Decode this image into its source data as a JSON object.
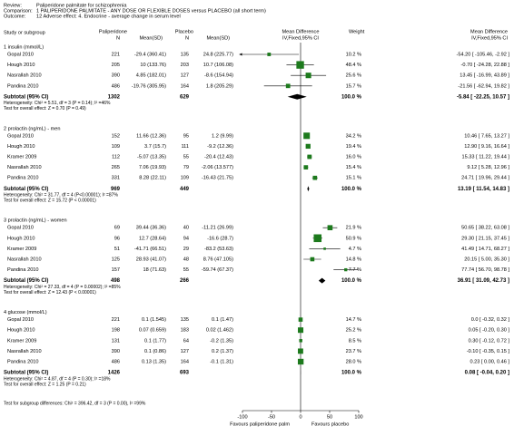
{
  "chart_data": {
    "type": "forest",
    "header": {
      "review_label": "Review:",
      "review": "Paliperidone palmitate for schizophrenia",
      "comparison_label": "Comparison:",
      "comparison": "1 PALIPERIDONE PALMITATE - ANY DOSE OR FLEXIBLE DOSES versus PLACEBO (all short term)",
      "outcome_label": "Outcome:",
      "outcome": "12 Adverse effect: 4. Endocrine - average change in serum level"
    },
    "columns": {
      "study": "Study or subgroup",
      "exp": "Paliperidone",
      "exp_n": "N",
      "exp_mean_sd": "Mean(SD)",
      "ctl": "Placebo",
      "ctl_n": "N",
      "ctl_mean_sd": "Mean(SD)",
      "plot": "Mean Difference",
      "plot_method": "IV,Fixed,95% CI",
      "weight": "Weight",
      "effect": "Mean Difference",
      "effect_method": "IV,Fixed,95% CI"
    },
    "color": "#1d7a1d",
    "groups": [
      {
        "title": "1 insulin (mmol/L)",
        "studies": [
          {
            "name": "Gopal 2010",
            "exp_n": 221,
            "exp_mean_sd": "-29.4 (360.41)",
            "ctl_n": 135,
            "ctl_mean_sd": "24.8 (225.77)",
            "weight": 10.2,
            "weight_label": "10.2 %",
            "md": -54.2,
            "ci_low": -105.46,
            "ci_high": -2.92,
            "ci_label": "-54.20 [ -105.46, -2.92 ]"
          },
          {
            "name": "Hough 2010",
            "exp_n": 205,
            "exp_mean_sd": "10 (133.76)",
            "ctl_n": 203,
            "ctl_mean_sd": "10.7 (106.08)",
            "weight": 48.4,
            "weight_label": "48.4 %",
            "md": -0.7,
            "ci_low": -24.28,
            "ci_high": 22.88,
            "ci_label": "-0.70 [ -24.28, 22.88 ]"
          },
          {
            "name": "Nasrallah 2010",
            "exp_n": 390,
            "exp_mean_sd": "4.85 (182.01)",
            "ctl_n": 127,
            "ctl_mean_sd": "-8.6 (154.94)",
            "weight": 25.6,
            "weight_label": "25.6 %",
            "md": 13.45,
            "ci_low": -16.99,
            "ci_high": 43.89,
            "ci_label": "13.45 [ -16.99, 43.89 ]"
          },
          {
            "name": "Pandina 2010",
            "exp_n": 486,
            "exp_mean_sd": "-19.76 (305.95)",
            "ctl_n": 164,
            "ctl_mean_sd": "1.8 (205.29)",
            "weight": 15.7,
            "weight_label": "15.7 %",
            "md": -21.56,
            "ci_low": -62.94,
            "ci_high": 19.82,
            "ci_label": "-21.56 [ -62.94, 19.82 ]"
          }
        ],
        "subtotal": {
          "label": "Subtotal (95% CI)",
          "exp_n": 1302,
          "ctl_n": 629,
          "weight_label": "100.0 %",
          "md": -5.84,
          "ci_low": -22.25,
          "ci_high": 10.57,
          "ci_label": "-5.84 [ -22.25, 10.57 ]"
        },
        "heterogeneity": "Heterogeneity: Chi² = 5.51, df = 3 (P = 0.14); I² =46%",
        "overall_effect": "Test for overall effect: Z = 0.70 (P = 0.49)"
      },
      {
        "title": "2 prolactin (ng/mL) - men",
        "studies": [
          {
            "name": "Gopal 2010",
            "exp_n": 152,
            "exp_mean_sd": "11.66 (12.36)",
            "ctl_n": 95,
            "ctl_mean_sd": "1.2 (9.99)",
            "weight": 34.2,
            "weight_label": "34.2 %",
            "md": 10.46,
            "ci_low": 7.65,
            "ci_high": 13.27,
            "ci_label": "10.46 [ 7.65, 13.27 ]"
          },
          {
            "name": "Hough 2010",
            "exp_n": 109,
            "exp_mean_sd": "3.7 (15.7)",
            "ctl_n": 111,
            "ctl_mean_sd": "-9.2 (12.36)",
            "weight": 19.4,
            "weight_label": "19.4 %",
            "md": 12.9,
            "ci_low": 9.16,
            "ci_high": 16.64,
            "ci_label": "12.90 [ 9.16, 16.64 ]"
          },
          {
            "name": "Kramer 2009",
            "exp_n": 112,
            "exp_mean_sd": "-5.07 (13.35)",
            "ctl_n": 55,
            "ctl_mean_sd": "-20.4 (12.43)",
            "weight": 16.0,
            "weight_label": "16.0 %",
            "md": 15.33,
            "ci_low": 11.22,
            "ci_high": 19.44,
            "ci_label": "15.33 [ 11.22, 19.44 ]"
          },
          {
            "name": "Nasrallah 2010",
            "exp_n": 265,
            "exp_mean_sd": "7.06 (19.93)",
            "ctl_n": 79,
            "ctl_mean_sd": "-2.06 (13.577)",
            "weight": 15.4,
            "weight_label": "15.4 %",
            "md": 9.12,
            "ci_low": 5.28,
            "ci_high": 12.96,
            "ci_label": "9.12 [ 5.28, 12.96 ]"
          },
          {
            "name": "Pandina 2010",
            "exp_n": 331,
            "exp_mean_sd": "8.28 (22.11)",
            "ctl_n": 109,
            "ctl_mean_sd": "-16.43 (21.75)",
            "weight": 15.1,
            "weight_label": "15.1 %",
            "md": 24.71,
            "ci_low": 19.96,
            "ci_high": 29.44,
            "ci_label": "24.71 [ 19.96, 29.44 ]"
          }
        ],
        "subtotal": {
          "label": "Subtotal (95% CI)",
          "exp_n": 969,
          "ctl_n": 449,
          "weight_label": "100.0 %",
          "md": 13.19,
          "ci_low": 11.54,
          "ci_high": 14.83,
          "ci_label": "13.19 [ 11.54, 14.83 ]"
        },
        "heterogeneity": "Heterogeneity: Chi² = 31.77, df = 4 (P<0.00001); I² =87%",
        "overall_effect": "Test for overall effect: Z = 15.72 (P < 0.00001)"
      },
      {
        "title": "3 prolactin (ng/mL) - women",
        "studies": [
          {
            "name": "Gopal 2010",
            "exp_n": 69,
            "exp_mean_sd": "39.44 (36.36)",
            "ctl_n": 40,
            "ctl_mean_sd": "-11.21 (26.99)",
            "weight": 21.9,
            "weight_label": "21.9 %",
            "md": 50.65,
            "ci_low": 38.22,
            "ci_high": 63.08,
            "ci_label": "50.65 [ 38.22, 63.08 ]"
          },
          {
            "name": "Hough 2010",
            "exp_n": 96,
            "exp_mean_sd": "12.7 (28.64)",
            "ctl_n": 94,
            "ctl_mean_sd": "-16.6 (28.7)",
            "weight": 50.9,
            "weight_label": "50.9 %",
            "md": 29.3,
            "ci_low": 21.15,
            "ci_high": 37.45,
            "ci_label": "29.30 [ 21.15, 37.45 ]"
          },
          {
            "name": "Kramer 2009",
            "exp_n": 51,
            "exp_mean_sd": "-41.71 (66.51)",
            "ctl_n": 29,
            "ctl_mean_sd": "-83.2 (53.63)",
            "weight": 4.7,
            "weight_label": "4.7 %",
            "md": 41.49,
            "ci_low": 14.71,
            "ci_high": 68.27,
            "ci_label": "41.49 [ 14.71, 68.27 ]"
          },
          {
            "name": "Nasrallah 2010",
            "exp_n": 125,
            "exp_mean_sd": "28.93 (41.07)",
            "ctl_n": 48,
            "ctl_mean_sd": "8.76 (47.105)",
            "weight": 14.8,
            "weight_label": "14.8 %",
            "md": 20.15,
            "ci_low": 5.0,
            "ci_high": 35.3,
            "ci_label": "20.15 [ 5.00, 35.30 ]"
          },
          {
            "name": "Pandina 2010",
            "exp_n": 157,
            "exp_mean_sd": "18 (71.63)",
            "ctl_n": 55,
            "ctl_mean_sd": "-59.74 (67.37)",
            "weight": 7.7,
            "weight_label": "7.7 %",
            "md": 77.74,
            "ci_low": 56.7,
            "ci_high": 98.78,
            "ci_label": "77.74 [ 56.70, 98.78 ]"
          }
        ],
        "subtotal": {
          "label": "Subtotal (95% CI)",
          "exp_n": 498,
          "ctl_n": 266,
          "weight_label": "100.0 %",
          "md": 36.91,
          "ci_low": 31.09,
          "ci_high": 42.73,
          "ci_label": "36.91 [ 31.09, 42.73 ]"
        },
        "heterogeneity": "Heterogeneity: Chi² = 27.33, df = 4 (P = 0.00002); I² =85%",
        "overall_effect": "Test for overall effect: Z = 12.43 (P < 0.00001)"
      },
      {
        "title": "4 glucose (mmol/L)",
        "studies": [
          {
            "name": "Gopal 2010",
            "exp_n": 221,
            "exp_mean_sd": "0.1 (1.545)",
            "ctl_n": 135,
            "ctl_mean_sd": "0.1 (1.47)",
            "weight": 14.7,
            "weight_label": "14.7 %",
            "md": 0.0,
            "ci_low": -0.32,
            "ci_high": 0.32,
            "ci_label": "0.0 [ -0.32, 0.32 ]"
          },
          {
            "name": "Hough 2010",
            "exp_n": 198,
            "exp_mean_sd": "0.07 (0.659)",
            "ctl_n": 183,
            "ctl_mean_sd": "0.02 (1.462)",
            "weight": 25.2,
            "weight_label": "25.2 %",
            "md": 0.05,
            "ci_low": -0.2,
            "ci_high": 0.3,
            "ci_label": "0.05 [ -0.20, 0.30 ]"
          },
          {
            "name": "Kramer 2009",
            "exp_n": 131,
            "exp_mean_sd": "0.1 (1.77)",
            "ctl_n": 64,
            "ctl_mean_sd": "-0.2 (1.35)",
            "weight": 8.5,
            "weight_label": "8.5 %",
            "md": 0.3,
            "ci_low": -0.12,
            "ci_high": 0.72,
            "ci_label": "0.30 [ -0.12, 0.72 ]"
          },
          {
            "name": "Nasrallah 2010",
            "exp_n": 390,
            "exp_mean_sd": "0.1 (0.86)",
            "ctl_n": 127,
            "ctl_mean_sd": "0.2 (1.37)",
            "weight": 23.7,
            "weight_label": "23.7 %",
            "md": -0.1,
            "ci_low": -0.35,
            "ci_high": 0.15,
            "ci_label": "-0.10 [ -0.35, 0.15 ]"
          },
          {
            "name": "Pandina 2010",
            "exp_n": 486,
            "exp_mean_sd": "0.13 (1.35)",
            "ctl_n": 164,
            "ctl_mean_sd": "-0.1 (1.31)",
            "weight": 28.0,
            "weight_label": "28.0 %",
            "md": 0.23,
            "ci_low": 0.0,
            "ci_high": 0.46,
            "ci_label": "0.23 [ 0.00, 0.46 ]"
          }
        ],
        "subtotal": {
          "label": "Subtotal (95% CI)",
          "exp_n": 1426,
          "ctl_n": 693,
          "weight_label": "100.0 %",
          "md": 0.08,
          "ci_low": -0.04,
          "ci_high": 0.2,
          "ci_label": "0.08 [ -0.04, 0.20 ]"
        },
        "heterogeneity": "Heterogeneity: Chi² = 4.87, df = 4 (P = 0.30); I² =18%",
        "overall_effect": "Test for overall effect: Z = 1.25 (P = 0.21)"
      }
    ],
    "subgroup_differences": "Test for subgroup differences: Chi² = 396.42, df = 3 (P = 0.00), I² =99%",
    "xlim": [
      -100,
      100
    ],
    "xticks": [
      -100,
      -50,
      0,
      50,
      100
    ],
    "favours_left": "Favours paliperidone palm",
    "favours_right": "Favours placebo"
  }
}
